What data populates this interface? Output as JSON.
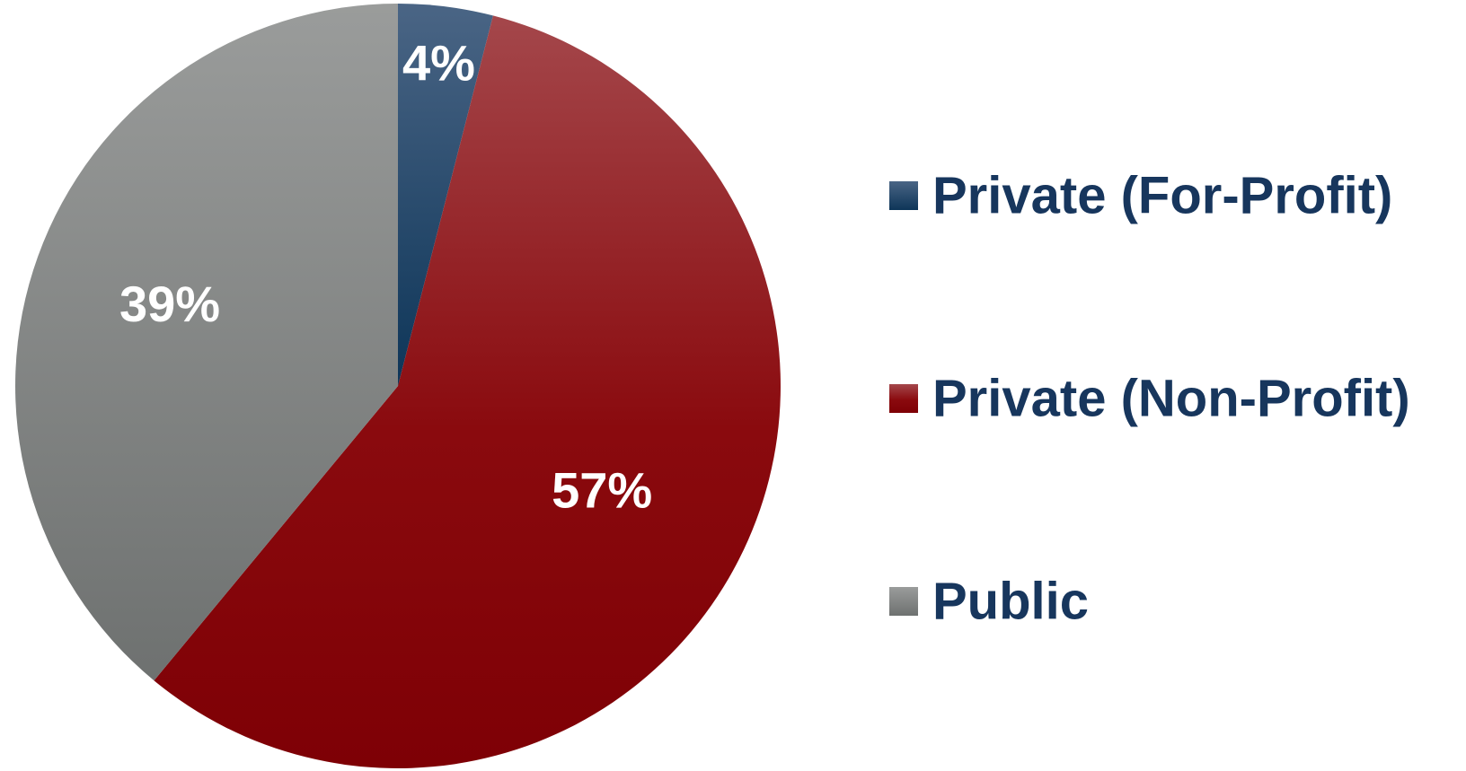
{
  "chart_data": {
    "type": "pie",
    "categories": [
      "Private (For-Profit)",
      "Private (Non-Profit)",
      "Public"
    ],
    "values": [
      4,
      57,
      39
    ],
    "value_labels": [
      "4%",
      "57%",
      "39%"
    ],
    "colors": [
      "#0d3558",
      "#8a0a0e",
      "#7a7c7c"
    ],
    "start_direction": "top",
    "direction": "clockwise",
    "legend": {
      "placement": "right",
      "entries": [
        "Private (For-Profit)",
        "Private (Non-Profit)",
        "Public"
      ]
    }
  }
}
